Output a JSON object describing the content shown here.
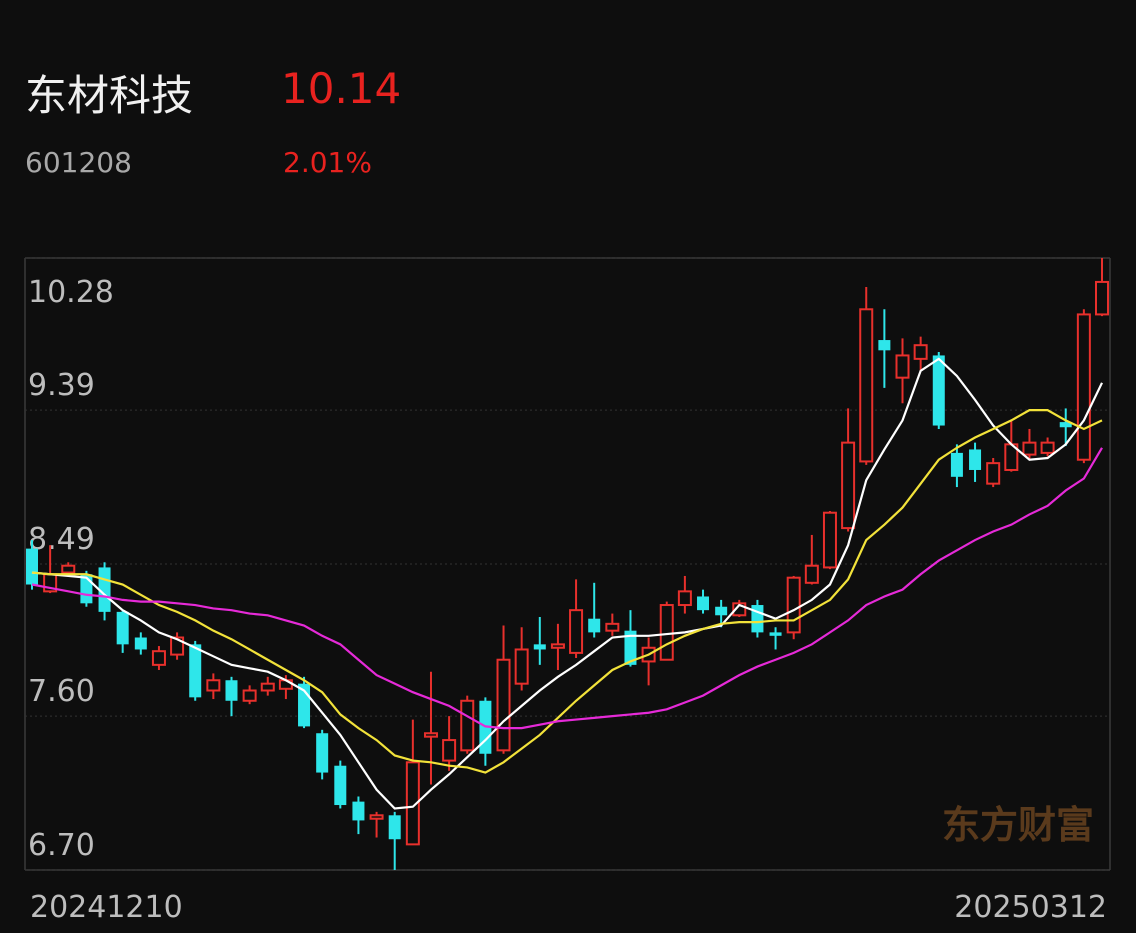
{
  "header": {
    "name": "东材科技",
    "price": "10.14",
    "code": "601208",
    "change": "2.01%"
  },
  "watermark": "东方财富",
  "chart_data": {
    "type": "candlestick",
    "categories": [
      "20241210",
      null,
      null,
      null,
      null,
      null,
      null,
      null,
      null,
      null,
      null,
      null,
      null,
      null,
      null,
      null,
      null,
      null,
      null,
      null,
      null,
      null,
      null,
      null,
      null,
      null,
      null,
      null,
      null,
      null,
      null,
      null,
      null,
      null,
      null,
      null,
      null,
      null,
      null,
      null,
      null,
      null,
      null,
      null,
      null,
      null,
      null,
      null,
      null,
      null,
      null,
      null,
      null,
      null,
      null,
      null,
      null,
      null,
      null,
      "20250312"
    ],
    "open": [
      8.58,
      8.33,
      8.44,
      8.43,
      8.47,
      8.21,
      8.06,
      7.9,
      7.96,
      8.02,
      7.75,
      7.81,
      7.69,
      7.75,
      7.76,
      7.79,
      7.5,
      7.31,
      7.1,
      7.0,
      7.02,
      6.85,
      7.48,
      7.34,
      7.4,
      7.69,
      7.4,
      7.79,
      8.02,
      8.0,
      7.97,
      8.17,
      8.1,
      8.1,
      7.92,
      7.93,
      8.25,
      8.3,
      8.24,
      8.19,
      8.25,
      8.09,
      8.09,
      8.38,
      8.47,
      8.7,
      9.09,
      9.8,
      9.58,
      9.69,
      9.71,
      9.14,
      9.16,
      8.96,
      9.04,
      9.13,
      9.14,
      9.32,
      9.1,
      9.95
    ],
    "high": [
      8.63,
      8.6,
      8.5,
      8.45,
      8.5,
      8.22,
      8.09,
      8.01,
      8.09,
      8.04,
      7.85,
      7.83,
      7.78,
      7.83,
      7.84,
      7.83,
      7.52,
      7.34,
      7.13,
      7.04,
      7.04,
      7.58,
      7.86,
      7.6,
      7.72,
      7.71,
      8.13,
      8.12,
      8.18,
      8.14,
      8.4,
      8.38,
      8.2,
      8.22,
      8.06,
      8.27,
      8.42,
      8.34,
      8.28,
      8.28,
      8.28,
      8.12,
      8.42,
      8.66,
      8.8,
      9.4,
      10.11,
      9.98,
      9.81,
      9.82,
      9.73,
      9.19,
      9.2,
      9.11,
      9.33,
      9.28,
      9.23,
      9.4,
      9.98,
      10.28
    ],
    "low": [
      8.34,
      8.32,
      8.42,
      8.24,
      8.16,
      7.97,
      7.96,
      7.87,
      7.93,
      7.69,
      7.7,
      7.6,
      7.67,
      7.72,
      7.7,
      7.53,
      7.23,
      7.06,
      6.91,
      6.89,
      6.7,
      6.85,
      7.2,
      7.28,
      7.38,
      7.31,
      7.38,
      7.75,
      7.9,
      7.87,
      7.94,
      8.06,
      8.07,
      7.89,
      7.78,
      7.93,
      8.2,
      8.2,
      8.12,
      8.18,
      8.06,
      7.99,
      8.05,
      8.37,
      8.46,
      8.68,
      9.07,
      9.52,
      9.43,
      9.62,
      9.28,
      8.94,
      8.97,
      8.94,
      9.03,
      9.1,
      9.12,
      9.18,
      9.08,
      9.94
    ],
    "close": [
      8.37,
      8.43,
      8.48,
      8.26,
      8.21,
      8.02,
      7.99,
      7.98,
      8.06,
      7.71,
      7.81,
      7.69,
      7.75,
      7.79,
      7.81,
      7.54,
      7.27,
      7.08,
      6.99,
      7.02,
      6.88,
      7.33,
      7.5,
      7.46,
      7.69,
      7.38,
      7.93,
      7.99,
      7.99,
      8.02,
      8.22,
      8.09,
      8.14,
      7.9,
      8.0,
      8.25,
      8.33,
      8.22,
      8.19,
      8.26,
      8.09,
      8.07,
      8.41,
      8.48,
      8.79,
      9.2,
      9.98,
      9.74,
      9.71,
      9.77,
      9.3,
      9.0,
      9.04,
      9.08,
      9.19,
      9.2,
      9.2,
      9.29,
      9.95,
      10.14
    ],
    "up_color": "#e8302c",
    "down_color": "#2ee6ea",
    "ma_lines": [
      {
        "color": "#ffffff",
        "values": [
          8.44,
          8.43,
          8.42,
          8.41,
          8.31,
          8.22,
          8.16,
          8.09,
          8.05,
          8.0,
          7.95,
          7.9,
          7.88,
          7.86,
          7.81,
          7.75,
          7.62,
          7.49,
          7.33,
          7.17,
          7.06,
          7.07,
          7.17,
          7.26,
          7.36,
          7.46,
          7.57,
          7.66,
          7.75,
          7.83,
          7.9,
          7.98,
          8.06,
          8.07,
          8.07,
          8.08,
          8.09,
          8.11,
          8.13,
          8.25,
          8.21,
          8.17,
          8.22,
          8.28,
          8.37,
          8.6,
          8.98,
          9.16,
          9.33,
          9.62,
          9.69,
          9.59,
          9.45,
          9.3,
          9.19,
          9.1,
          9.11,
          9.19,
          9.33,
          9.55
        ]
      },
      {
        "color": "#f2e23a",
        "values": [
          8.44,
          8.43,
          8.43,
          8.43,
          8.4,
          8.37,
          8.31,
          8.25,
          8.21,
          8.16,
          8.1,
          8.05,
          7.99,
          7.93,
          7.87,
          7.81,
          7.74,
          7.61,
          7.53,
          7.46,
          7.37,
          7.34,
          7.33,
          7.31,
          7.3,
          7.27,
          7.33,
          7.41,
          7.49,
          7.59,
          7.69,
          7.78,
          7.87,
          7.92,
          7.96,
          8.02,
          8.07,
          8.11,
          8.14,
          8.15,
          8.15,
          8.16,
          8.16,
          8.22,
          8.28,
          8.4,
          8.63,
          8.72,
          8.82,
          8.96,
          9.1,
          9.17,
          9.23,
          9.28,
          9.33,
          9.39,
          9.39,
          9.33,
          9.28,
          9.33
        ]
      },
      {
        "color": "#e62ad8",
        "values": [
          8.37,
          8.35,
          8.33,
          8.31,
          8.3,
          8.28,
          8.27,
          8.27,
          8.26,
          8.25,
          8.23,
          8.22,
          8.2,
          8.19,
          8.16,
          8.13,
          8.07,
          8.02,
          7.93,
          7.84,
          7.79,
          7.74,
          7.7,
          7.66,
          7.6,
          7.54,
          7.53,
          7.53,
          7.55,
          7.57,
          7.58,
          7.59,
          7.6,
          7.61,
          7.62,
          7.64,
          7.68,
          7.72,
          7.78,
          7.84,
          7.89,
          7.93,
          7.97,
          8.02,
          8.09,
          8.16,
          8.25,
          8.3,
          8.34,
          8.43,
          8.51,
          8.57,
          8.63,
          8.68,
          8.72,
          8.78,
          8.83,
          8.92,
          8.99,
          9.17
        ]
      }
    ],
    "ylim": [
      6.7,
      10.28
    ],
    "yticks": [
      {
        "value": 6.7,
        "label": "6.70"
      },
      {
        "value": 7.6,
        "label": "7.60"
      },
      8.49,
      9.39,
      10.28
    ],
    "grid": true
  }
}
